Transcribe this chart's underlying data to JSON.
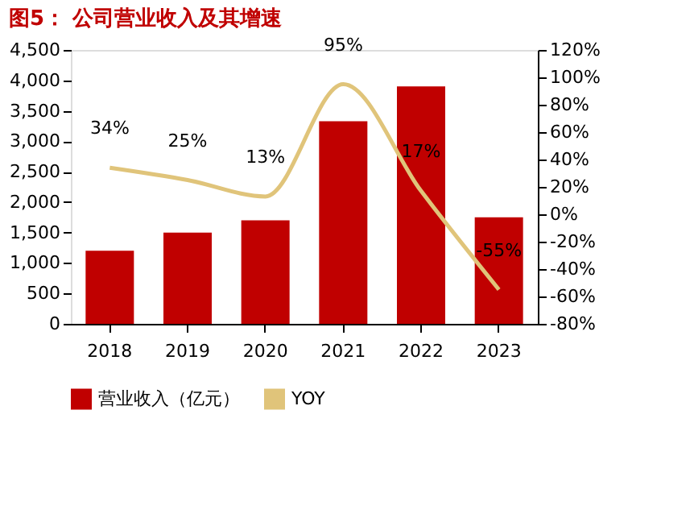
{
  "chart_data": {
    "type": "bar",
    "title": "图5：  公司营业收入及其增速",
    "categories": [
      "2018",
      "2019",
      "2020",
      "2021",
      "2022",
      "2023"
    ],
    "series": [
      {
        "name": "营业收入（亿元）",
        "color": "#c00000",
        "values": [
          1200,
          1500,
          1700,
          3330,
          3900,
          1750
        ]
      },
      {
        "name": "YOY",
        "type": "line",
        "axis": "y2",
        "color": "#e0c47a",
        "values": [
          34,
          25,
          13,
          95,
          17,
          -55
        ],
        "value_labels": [
          "34%",
          "25%",
          "13%",
          "95%",
          "17%",
          "-55%"
        ]
      }
    ],
    "ylim": [
      0,
      4500
    ],
    "yticks": [
      0,
      {
        "value": 500,
        "label": "500"
      },
      {
        "value": 1000,
        "label": "1,000"
      },
      {
        "value": 1500,
        "label": "1,500"
      },
      {
        "value": 2000,
        "label": "2,000"
      },
      {
        "value": 2500,
        "label": "2,500"
      },
      {
        "value": 3000,
        "label": "3,000"
      },
      {
        "value": 3500,
        "label": "3,500"
      },
      {
        "value": 4000,
        "label": "4,000"
      },
      {
        "value": 4500,
        "label": "4,500"
      }
    ],
    "y2lim": [
      -80,
      120
    ],
    "y2ticks": [
      {
        "value": -80,
        "label": "-80%"
      },
      {
        "value": -60,
        "label": "-60%"
      },
      {
        "value": -40,
        "label": "-40%"
      },
      {
        "value": -20,
        "label": "-20%"
      },
      {
        "value": 0,
        "label": "0%"
      },
      {
        "value": 20,
        "label": "20%"
      },
      {
        "value": 40,
        "label": "40%"
      },
      {
        "value": 60,
        "label": "60%"
      },
      {
        "value": 80,
        "label": "80%"
      },
      {
        "value": 100,
        "label": "100%"
      },
      {
        "value": 120,
        "label": "120%"
      }
    ],
    "legend": "bottom",
    "grid": false,
    "marker": "none",
    "line_style": "solid"
  }
}
